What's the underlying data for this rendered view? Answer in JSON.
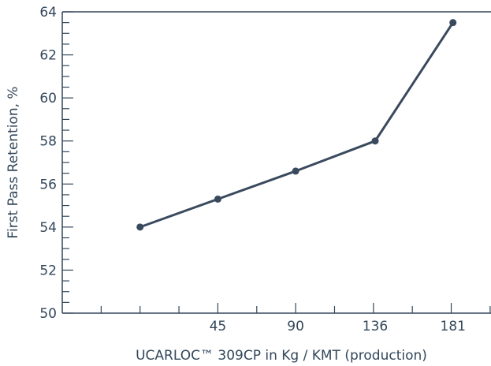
{
  "chart_data": {
    "type": "line",
    "xlabel": "UCARLOC™ 309CP in Kg / KMT (production)",
    "ylabel": "First Pass Retention, %",
    "xlim": [
      -45,
      203
    ],
    "ylim": [
      50,
      64
    ],
    "x_ticks": [
      45,
      90,
      136,
      181
    ],
    "y_ticks": [
      50,
      52,
      54,
      56,
      58,
      60,
      62,
      64
    ],
    "series": [
      {
        "x": [
          0,
          45,
          90,
          136,
          181
        ],
        "y": [
          54.0,
          55.3,
          56.6,
          58.0,
          63.5
        ]
      }
    ],
    "grid": false,
    "colors": {
      "axis": "#33475b",
      "line": "#3a4a5e"
    }
  }
}
